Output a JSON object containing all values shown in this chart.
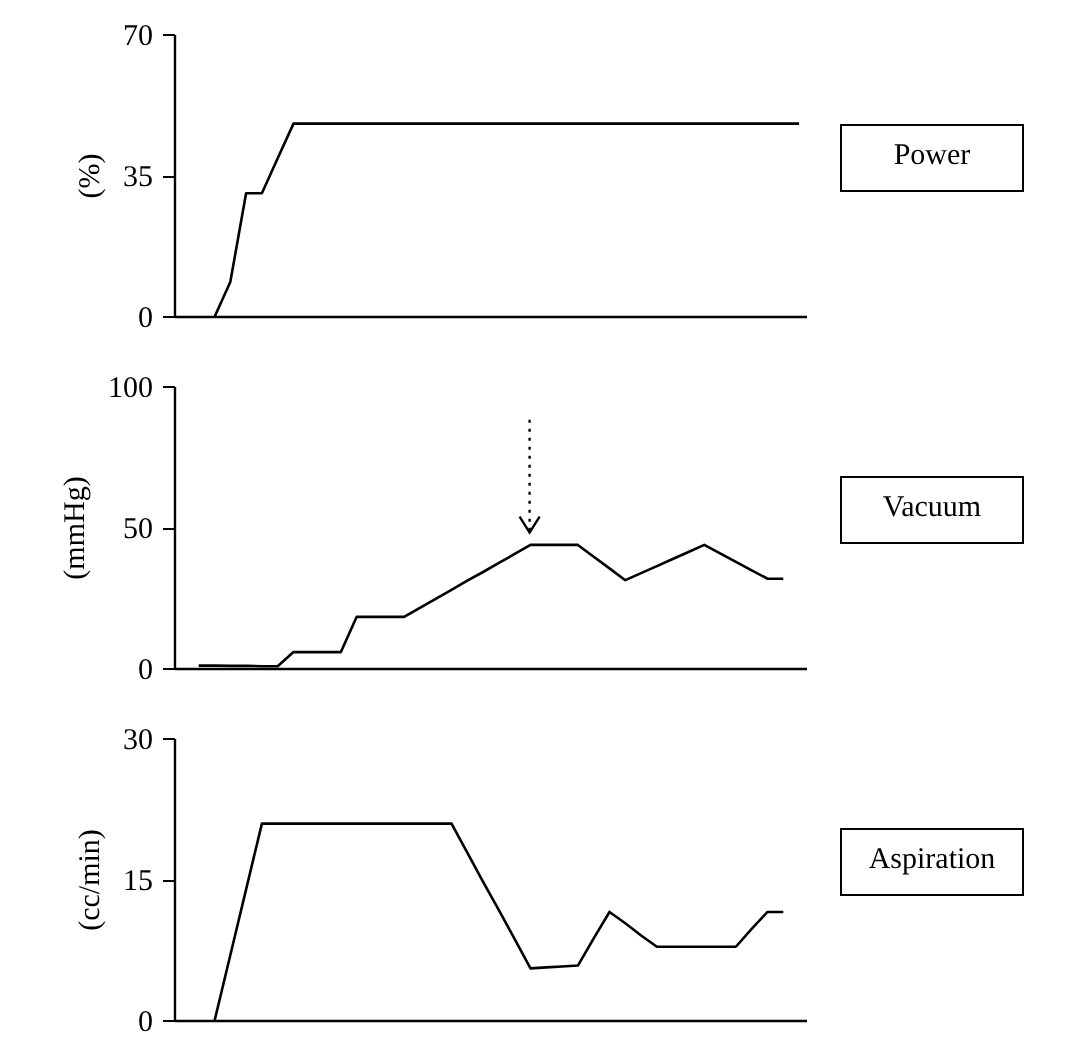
{
  "chart_data": [
    {
      "type": "line",
      "ylabel": "(%)",
      "ylim": [
        0,
        70
      ],
      "yticks": [
        0,
        35,
        70
      ],
      "tick_labels": "y",
      "grid": false,
      "marker": "none",
      "line_style": "solid",
      "categories": [
        null,
        null,
        null,
        null,
        null,
        null,
        null,
        null,
        null,
        null,
        null,
        null,
        null,
        null,
        null,
        null,
        null,
        null,
        null,
        null,
        null,
        null,
        null,
        null,
        null,
        null,
        null,
        null,
        null,
        null,
        null,
        null,
        null,
        null,
        null,
        null,
        null,
        null,
        null,
        null
      ],
      "series": [
        {
          "name": "Power",
          "color": "#000000",
          "values": [
            null,
            null,
            0,
            8.7,
            30.7,
            30.7,
            39.4,
            48,
            48,
            48,
            48,
            48,
            48,
            48,
            48,
            48,
            48,
            48,
            48,
            48,
            48,
            48,
            48,
            48,
            48,
            48,
            48,
            48,
            48,
            48,
            48,
            48,
            48,
            48,
            48,
            48,
            48,
            48,
            48,
            48
          ]
        }
      ]
    },
    {
      "type": "line",
      "ylabel": "(mmHg)",
      "ylim": [
        0,
        100
      ],
      "yticks": [
        0,
        50,
        100
      ],
      "tick_labels": "y",
      "grid": false,
      "marker": "none",
      "line_style": "solid",
      "categories": [
        null,
        null,
        null,
        null,
        null,
        null,
        null,
        null,
        null,
        null,
        null,
        null,
        null,
        null,
        null,
        null,
        null,
        null,
        null,
        null,
        null,
        null,
        null,
        null,
        null,
        null,
        null,
        null,
        null,
        null,
        null,
        null,
        null,
        null,
        null,
        null,
        null,
        null,
        null,
        null
      ],
      "series": [
        {
          "name": "Vacuum",
          "color": "#000000",
          "values": [
            null,
            1.2,
            1.2,
            1.1,
            1.1,
            1,
            1,
            6,
            6,
            6,
            6,
            18.5,
            18.5,
            18.5,
            18.5,
            21.7,
            24.9,
            28.1,
            31.3,
            34.4,
            37.6,
            40.8,
            44,
            44,
            44,
            44,
            39.8,
            35.7,
            31.5,
            34,
            36.5,
            39,
            41.5,
            44,
            41,
            38,
            35,
            32,
            32,
            null
          ]
        }
      ]
    },
    {
      "type": "line",
      "ylabel": "(cc/min)",
      "ylim": [
        0,
        30
      ],
      "yticks": [
        0,
        15,
        30
      ],
      "tick_labels": "y",
      "grid": false,
      "marker": "none",
      "line_style": "solid",
      "categories": [
        null,
        null,
        null,
        null,
        null,
        null,
        null,
        null,
        null,
        null,
        null,
        null,
        null,
        null,
        null,
        null,
        null,
        null,
        null,
        null,
        null,
        null,
        null,
        null,
        null,
        null,
        null,
        null,
        null,
        null,
        null,
        null,
        null,
        null,
        null,
        null,
        null,
        null,
        null,
        null
      ],
      "series": [
        {
          "name": "Aspiration",
          "color": "#000000",
          "values": [
            null,
            null,
            0,
            7,
            14,
            21,
            21,
            21,
            21,
            21,
            21,
            21,
            21,
            21,
            21,
            21,
            21,
            21,
            17.9,
            14.8,
            11.8,
            8.7,
            5.6,
            5.7,
            5.8,
            5.9,
            8.8,
            11.6,
            10.4,
            9.1,
            7.9,
            7.9,
            7.9,
            7.9,
            7.9,
            7.9,
            9.8,
            11.6,
            11.6,
            null
          ]
        }
      ]
    }
  ]
}
